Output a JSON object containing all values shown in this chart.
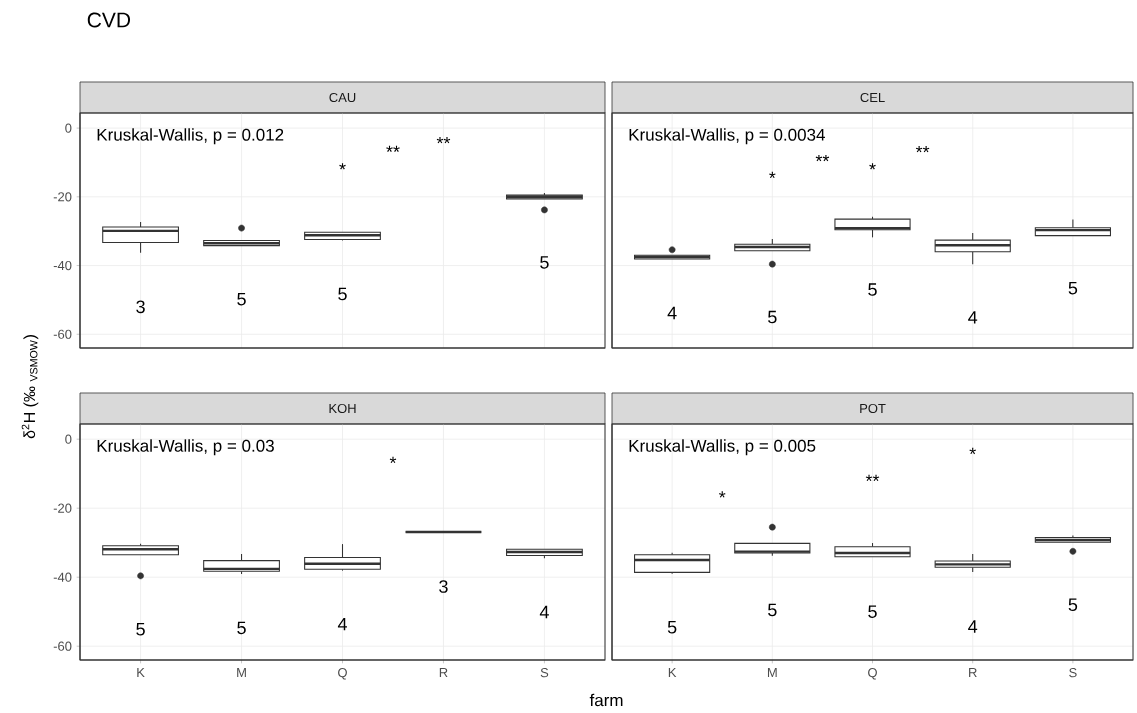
{
  "chart_data": [
    {
      "type": "box",
      "title": "CVD",
      "subtitle": "CAU",
      "ylabel": "δ$^{2}$H (‰ $_{VSMOW}$)",
      "categories": [
        "K",
        "M",
        "Q",
        "R",
        "S"
      ],
      "color": "#333333",
      "ylim": [
        -64,
        4.4
      ],
      "yticks": [
        -60,
        -40,
        -20,
        0
      ],
      "grid": true,
      "tick_labels": "y",
      "boxes": [
        {
          "low": -36.3,
          "q1": -33.3,
          "median": -29.9,
          "q3": -28.8,
          "high": -27.3
        },
        {
          "low": -34.2,
          "q1": -34.2,
          "median": -33.5,
          "q3": -32.7,
          "high": -32.7,
          "outliers": [
            -29.1
          ]
        },
        {
          "low": -32.7,
          "q1": -32.4,
          "median": -31.2,
          "q3": -30.3,
          "high": -30.3
        },
        null,
        {
          "low": -20.6,
          "q1": -20.6,
          "median": -20,
          "q3": -19.5,
          "high": -18.9,
          "outliers": [
            -23.8
          ]
        }
      ],
      "annotations": [
        "Kruskal-Wallis, p = 0.012",
        "3",
        "5",
        "5",
        "5",
        "**",
        "**",
        "*"
      ]
    },
    {
      "type": "box",
      "subtitle": "CEL",
      "categories": [
        "K",
        "M",
        "Q",
        "R",
        "S"
      ],
      "color": "#333333",
      "ylim": [
        -64,
        4.4
      ],
      "yticks": [
        -60,
        -40,
        -20,
        0
      ],
      "grid": true,
      "tick_labels": false,
      "boxes": [
        {
          "low": -38.1,
          "q1": -38.1,
          "median": -37.5,
          "q3": -37,
          "high": -37,
          "outliers": [
            -35.4
          ]
        },
        {
          "low": -35.7,
          "q1": -35.7,
          "median": -34.6,
          "q3": -33.8,
          "high": -32.3,
          "outliers": [
            -39.6
          ]
        },
        {
          "low": -31.8,
          "q1": -29.6,
          "median": -29.1,
          "q3": -26.5,
          "high": -25.8
        },
        {
          "low": -39.6,
          "q1": -36,
          "median": -34.1,
          "q3": -32.6,
          "high": -30.5
        },
        {
          "low": -31.3,
          "q1": -31.3,
          "median": -29.7,
          "q3": -29,
          "high": -26.6
        }
      ],
      "annotations": [
        "Kruskal-Wallis, p = 0.0034",
        "4",
        "5",
        "5",
        "4",
        "5",
        "**",
        "**",
        "*",
        "*"
      ]
    },
    {
      "type": "box",
      "subtitle": "KOH",
      "xlabel": "farm",
      "categories": [
        "K",
        "M",
        "Q",
        "R",
        "S"
      ],
      "color": "#333333",
      "ylim": [
        -64,
        4.4
      ],
      "yticks": [
        -60,
        -40,
        -20,
        0
      ],
      "grid": true,
      "boxes": [
        {
          "low": -33.5,
          "q1": -33.5,
          "median": -31.9,
          "q3": -30.9,
          "high": -30.3,
          "outliers": [
            -39.6
          ]
        },
        {
          "low": -39.1,
          "q1": -38.3,
          "median": -37.6,
          "q3": -35.2,
          "high": -33.3
        },
        {
          "low": -38.1,
          "q1": -37.7,
          "median": -36.1,
          "q3": -34.3,
          "high": -30.4
        },
        {
          "low": -26.9,
          "q1": -26.9,
          "median": -26.9,
          "q3": -26.9,
          "high": -26.9
        },
        {
          "low": -34.5,
          "q1": -33.7,
          "median": -32.7,
          "q3": -31.9,
          "high": -31.9
        }
      ],
      "annotations": [
        "Kruskal-Wallis, p = 0.03",
        "5",
        "5",
        "4",
        "3",
        "4",
        "*"
      ]
    },
    {
      "type": "box",
      "subtitle": "POT",
      "categories": [
        "K",
        "M",
        "Q",
        "R",
        "S"
      ],
      "color": "#333333",
      "ylim": [
        -64,
        4.4
      ],
      "yticks": [
        -60,
        -40,
        -20,
        0
      ],
      "grid": true,
      "tick_labels": "x",
      "boxes": [
        {
          "low": -39,
          "q1": -38.6,
          "median": -35,
          "q3": -33.5,
          "high": -32.9
        },
        {
          "low": -33.8,
          "q1": -33,
          "median": -32.6,
          "q3": -30.2,
          "high": -30.2,
          "outliers": [
            -25.5
          ]
        },
        {
          "low": -34.1,
          "q1": -34.1,
          "median": -33,
          "q3": -31.2,
          "high": -30.1
        },
        {
          "low": -38.5,
          "q1": -37.1,
          "median": -36.3,
          "q3": -35.3,
          "high": -33.3
        },
        {
          "low": -29.9,
          "q1": -29.9,
          "median": -29.2,
          "q3": -28.5,
          "high": -27.9,
          "outliers": [
            -32.5
          ]
        }
      ],
      "annotations": [
        "Kruskal-Wallis, p = 0.005",
        "5",
        "5",
        "5",
        "4",
        "5",
        "*",
        "**",
        "*"
      ]
    }
  ]
}
